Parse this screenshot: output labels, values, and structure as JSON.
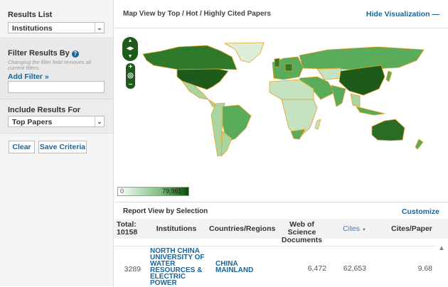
{
  "sidebar": {
    "results_list": {
      "label": "Results List",
      "value": "Institutions"
    },
    "filter": {
      "label": "Filter Results By",
      "note": "Changing the filter field removes all current filters.",
      "add_filter": "Add Filter »",
      "input_value": ""
    },
    "include": {
      "label": "Include Results For",
      "value": "Top Papers"
    },
    "clear_label": "Clear",
    "save_label": "Save Criteria"
  },
  "map": {
    "title": "Map View by Top / Hot / Highly Cited Papers",
    "hide_label": "Hide Visualization",
    "legend_min": "0",
    "legend_max": "79,961",
    "colors": {
      "darkest": "#1e5a1a",
      "dark": "#2f7a2a",
      "mid": "#5aab5a",
      "light": "#a8d5a0",
      "lightest": "#dcefd8",
      "border": "#e8a020"
    }
  },
  "report": {
    "title": "Report View by Selection",
    "customize": "Customize",
    "columns": {
      "total": "Total:",
      "total_value": "10158",
      "institutions": "Institutions",
      "countries": "Countries/Regions",
      "wos": "Web of Science Documents",
      "cites": "Cites",
      "cites_paper": "Cites/Paper"
    },
    "rows": [
      {
        "rank": "3289",
        "institution": "NORTH CHINA UNIVERSITY OF WATER RESOURCES & ELECTRIC POWER",
        "country": "CHINA MAINLAND",
        "wos": "6,472",
        "cites": "62,653",
        "cites_paper": "9.68"
      }
    ]
  }
}
